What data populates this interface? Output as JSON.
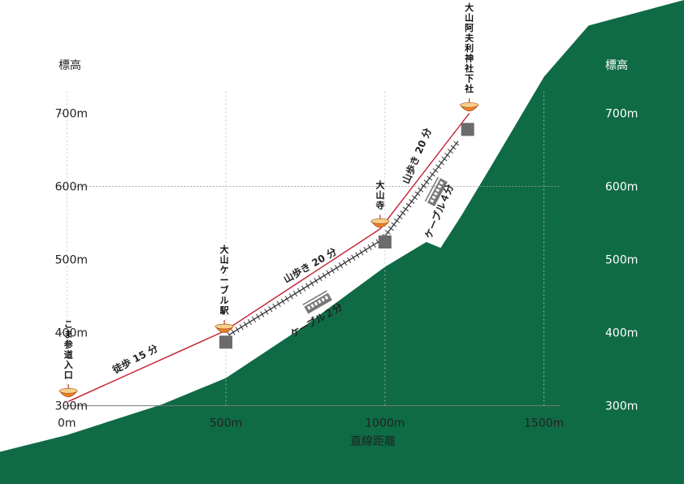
{
  "colors": {
    "mountain": "#0f6b45",
    "route": "#c41e2e",
    "station": "#6b6b6b",
    "cable": "#333333",
    "grid": "#999999",
    "marker": "#e8832a"
  },
  "chart_data": {
    "type": "diagram",
    "title": "",
    "xlabel": "直線距離",
    "ylabel_left": "標高",
    "ylabel_right": "標高",
    "x_ticks": [
      {
        "value": 0,
        "label": "0m"
      },
      {
        "value": 500,
        "label": "500m"
      },
      {
        "value": 1000,
        "label": "1000m"
      },
      {
        "value": 1500,
        "label": "1500m"
      }
    ],
    "y_ticks": [
      {
        "value": 300,
        "label": "300m"
      },
      {
        "value": 400,
        "label": "400m"
      },
      {
        "value": 500,
        "label": "500m"
      },
      {
        "value": 600,
        "label": "600m"
      },
      {
        "value": 700,
        "label": "700m"
      }
    ],
    "xlim": [
      -210,
      1940
    ],
    "ylim": [
      193,
      855
    ],
    "places": [
      {
        "name": "こま参道入口",
        "x": 5,
        "y": 316
      },
      {
        "name": "大山ケーブル駅",
        "x": 495,
        "y": 404
      },
      {
        "name": "大山寺",
        "x": 985,
        "y": 548
      },
      {
        "name": "大山阿夫利神社下社",
        "x": 1265,
        "y": 707
      }
    ],
    "stations": [
      {
        "x": 500,
        "y": 387
      },
      {
        "x": 1000,
        "y": 524
      },
      {
        "x": 1260,
        "y": 678
      }
    ],
    "walk_route": [
      {
        "x": 5,
        "y": 306
      },
      {
        "x": 495,
        "y": 402
      },
      {
        "x": 985,
        "y": 542
      },
      {
        "x": 1265,
        "y": 700
      }
    ],
    "cable_segments": [
      {
        "from": {
          "x": 510,
          "y": 397
        },
        "to": {
          "x": 990,
          "y": 527
        }
      },
      {
        "from": {
          "x": 1000,
          "y": 532
        },
        "to": {
          "x": 1230,
          "y": 662
        }
      }
    ],
    "route_labels": [
      {
        "text": "徒歩 15 分",
        "x": 220,
        "y": 360,
        "angle": -28
      },
      {
        "text": "山歩き 20 分",
        "x": 770,
        "y": 488,
        "angle": -30
      },
      {
        "text": "ケーブル２分",
        "x": 790,
        "y": 413,
        "angle": -30
      },
      {
        "text": "山歩き 20 分",
        "x": 1110,
        "y": 640,
        "angle": -67
      },
      {
        "text": "ケーブル４分",
        "x": 1180,
        "y": 564,
        "angle": -67
      }
    ],
    "cable_car_icons": [
      {
        "x": 790,
        "y": 440,
        "angle": -30
      },
      {
        "x": 1165,
        "y": 592,
        "angle": -62
      }
    ],
    "terrain": [
      {
        "x": -210,
        "y": 237
      },
      {
        "x": 0,
        "y": 260
      },
      {
        "x": 300,
        "y": 302
      },
      {
        "x": 500,
        "y": 338
      },
      {
        "x": 750,
        "y": 410
      },
      {
        "x": 1000,
        "y": 490
      },
      {
        "x": 1130,
        "y": 524
      },
      {
        "x": 1175,
        "y": 516
      },
      {
        "x": 1240,
        "y": 560
      },
      {
        "x": 1330,
        "y": 625
      },
      {
        "x": 1500,
        "y": 750
      },
      {
        "x": 1640,
        "y": 820
      },
      {
        "x": 1940,
        "y": 855
      },
      {
        "x": 1940,
        "y": 193
      },
      {
        "x": -210,
        "y": 193
      }
    ]
  }
}
